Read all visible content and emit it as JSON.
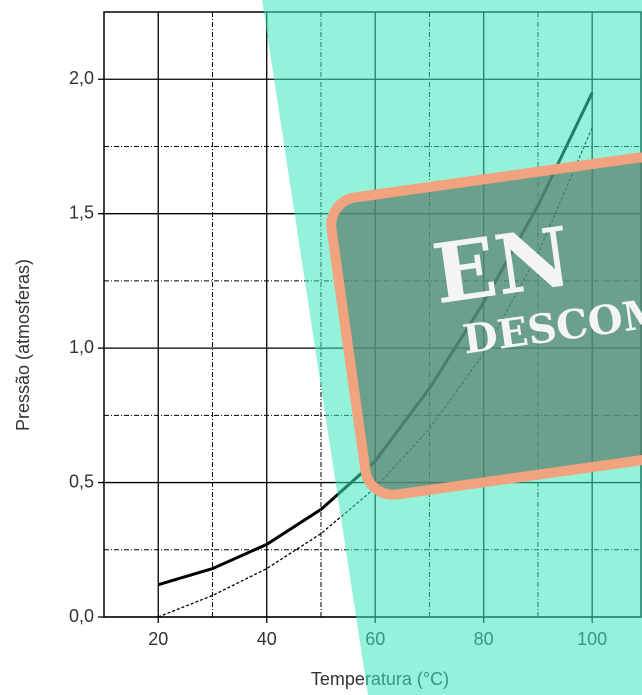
{
  "chart_data": {
    "type": "line",
    "x_label": "Temperatura (°C)",
    "y_label": "Pressão (atmosferas)",
    "x": [
      20,
      30,
      40,
      50,
      60,
      70,
      80,
      90,
      100
    ],
    "series": [
      {
        "color": "#000000",
        "dash": false,
        "values": [
          0.12,
          0.18,
          0.27,
          0.4,
          0.58,
          0.85,
          1.17,
          1.53,
          1.95
        ]
      },
      {
        "color": "#000000",
        "dash": true,
        "values": [
          0.0,
          0.08,
          0.18,
          0.31,
          0.48,
          0.7,
          0.98,
          1.35,
          1.82
        ]
      }
    ],
    "xlim": [
      10,
      109
    ],
    "ylim": [
      0,
      2.25
    ],
    "xticks": [
      20,
      40,
      60,
      80,
      100
    ],
    "yticks": [
      {
        "value": 0,
        "label": "0,0"
      },
      {
        "value": 0.5,
        "label": "0,5"
      },
      {
        "value": 1,
        "label": "1,0"
      },
      {
        "value": 1.5,
        "label": "1,5"
      },
      {
        "value": 2,
        "label": "2,0"
      }
    ],
    "minor_xgrid": [
      30,
      50,
      70,
      90
    ],
    "minor_ygrid": [
      0.25,
      0.75,
      1.25,
      1.75
    ],
    "grid": true,
    "annotations": [
      "EN",
      "DESCOM"
    ]
  }
}
